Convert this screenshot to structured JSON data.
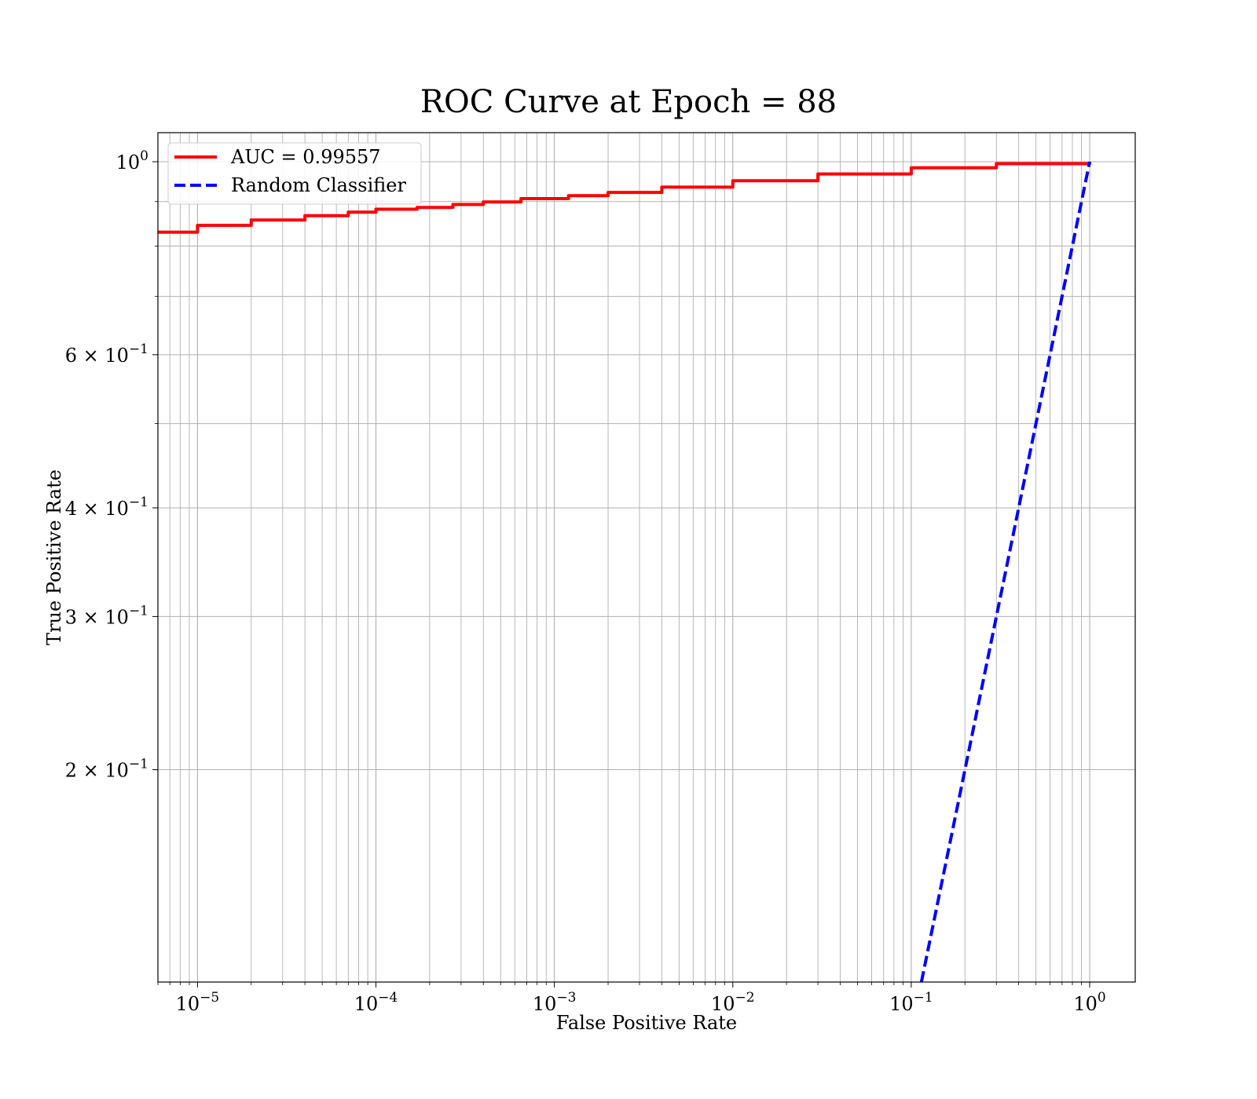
{
  "chart_data": {
    "type": "line",
    "title": "ROC Curve at Epoch = 88",
    "xlabel": "False Positive Rate",
    "ylabel": "True Positive Rate",
    "xscale": "log",
    "yscale": "log",
    "xlim": [
      6e-06,
      1.8
    ],
    "ylim": [
      0.114,
      1.08
    ],
    "grid": true,
    "grid_which": "both",
    "legend_placement": "upper-left",
    "x_ticks": [
      {
        "value": 1e-05,
        "base": "10",
        "exp": "−5"
      },
      {
        "value": 0.0001,
        "base": "10",
        "exp": "−4"
      },
      {
        "value": 0.001,
        "base": "10",
        "exp": "−3"
      },
      {
        "value": 0.01,
        "base": "10",
        "exp": "−2"
      },
      {
        "value": 0.1,
        "base": "10",
        "exp": "−1"
      },
      {
        "value": 1,
        "base": "10",
        "exp": "0"
      }
    ],
    "y_ticks": [
      {
        "value": 1.0,
        "base": "10",
        "exp": "0"
      },
      {
        "value": 0.6,
        "base": "6 × 10",
        "exp": "−1"
      },
      {
        "value": 0.4,
        "base": "4 × 10",
        "exp": "−1"
      },
      {
        "value": 0.3,
        "base": "3 × 10",
        "exp": "−1"
      },
      {
        "value": 0.2,
        "base": "2 × 10",
        "exp": "−1"
      }
    ],
    "series": [
      {
        "name": "AUC = 0.99557",
        "color": "#ff0000",
        "style": "solid",
        "step": true,
        "x": [
          6e-06,
          1e-05,
          2e-05,
          4e-05,
          7e-05,
          0.0001,
          0.00017,
          0.00027,
          0.0004,
          0.00065,
          0.0012,
          0.002,
          0.004,
          0.01,
          0.03,
          0.1,
          0.3,
          1.0
        ],
        "y": [
          0.83,
          0.845,
          0.857,
          0.867,
          0.875,
          0.882,
          0.886,
          0.893,
          0.899,
          0.907,
          0.914,
          0.922,
          0.935,
          0.951,
          0.968,
          0.984,
          0.995,
          1.0
        ]
      },
      {
        "name": "Random Classifier",
        "color": "#0000ff",
        "style": "dashed",
        "step": false,
        "x": [
          0.114,
          1.0
        ],
        "y": [
          0.114,
          1.0
        ]
      }
    ]
  }
}
